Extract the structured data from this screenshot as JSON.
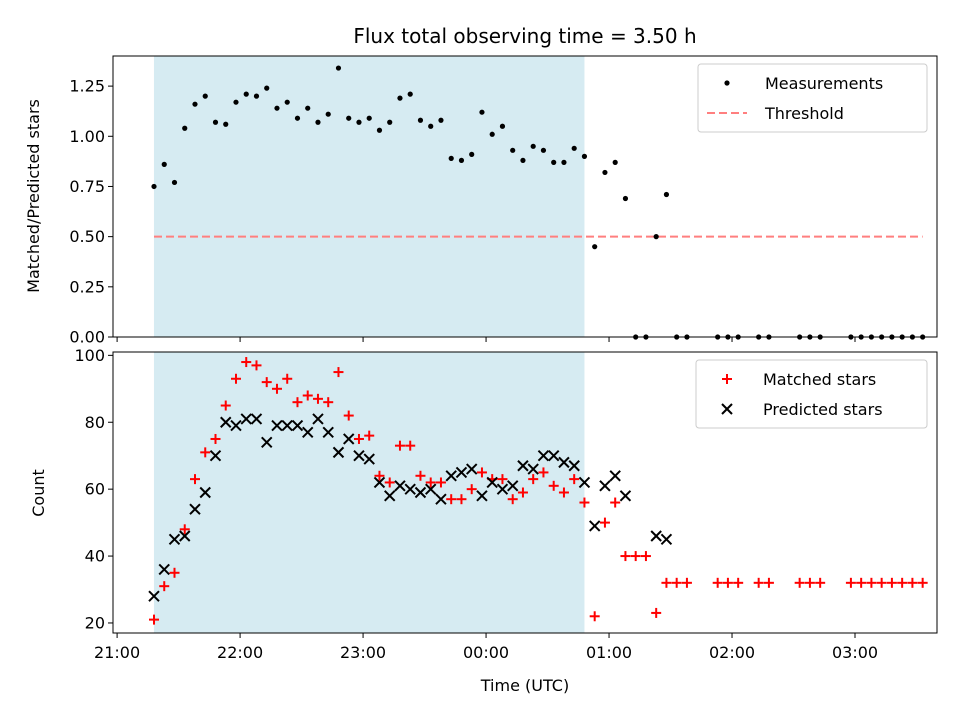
{
  "chart_data": [
    {
      "type": "scatter",
      "title": "Flux total observing time = 3.50 h",
      "xlabel": "",
      "ylabel": "Matched/Predicted stars",
      "xlim": [
        "2023-01-01T20:58",
        "2023-01-02T03:40"
      ],
      "ylim": [
        0,
        1.4
      ],
      "yticks": [
        0.0,
        0.25,
        0.5,
        0.75,
        1.0,
        1.25
      ],
      "ytick_labels": [
        "0.00",
        "0.25",
        "0.50",
        "0.75",
        "1.00",
        "1.25"
      ],
      "shaded_span": [
        "2023-01-01T21:18",
        "2023-01-02T00:48"
      ],
      "shaded_color": "#add8e6",
      "threshold": 0.5,
      "threshold_color": "#ff7f7f",
      "legend": {
        "position": "upper right",
        "entries": [
          "Measurements",
          "Threshold"
        ]
      },
      "series": [
        {
          "name": "Measurements",
          "marker": "dot",
          "color": "#000000",
          "points": [
            [
              "21:18",
              0.75
            ],
            [
              "21:23",
              0.86
            ],
            [
              "21:28",
              0.77
            ],
            [
              "21:33",
              1.04
            ],
            [
              "21:38",
              1.16
            ],
            [
              "21:43",
              1.2
            ],
            [
              "21:48",
              1.07
            ],
            [
              "21:53",
              1.06
            ],
            [
              "21:58",
              1.17
            ],
            [
              "22:03",
              1.21
            ],
            [
              "22:08",
              1.2
            ],
            [
              "22:13",
              1.24
            ],
            [
              "22:18",
              1.14
            ],
            [
              "22:23",
              1.17
            ],
            [
              "22:28",
              1.09
            ],
            [
              "22:33",
              1.14
            ],
            [
              "22:38",
              1.07
            ],
            [
              "22:43",
              1.11
            ],
            [
              "22:48",
              1.34
            ],
            [
              "22:53",
              1.09
            ],
            [
              "22:58",
              1.07
            ],
            [
              "23:03",
              1.09
            ],
            [
              "23:08",
              1.03
            ],
            [
              "23:13",
              1.07
            ],
            [
              "23:18",
              1.19
            ],
            [
              "23:23",
              1.21
            ],
            [
              "23:28",
              1.08
            ],
            [
              "23:33",
              1.05
            ],
            [
              "23:38",
              1.08
            ],
            [
              "23:43",
              0.89
            ],
            [
              "23:48",
              0.88
            ],
            [
              "23:53",
              0.91
            ],
            [
              "23:58",
              1.12
            ],
            [
              "00:03",
              1.01
            ],
            [
              "00:08",
              1.05
            ],
            [
              "00:13",
              0.93
            ],
            [
              "00:18",
              0.88
            ],
            [
              "00:23",
              0.95
            ],
            [
              "00:28",
              0.93
            ],
            [
              "00:33",
              0.87
            ],
            [
              "00:38",
              0.87
            ],
            [
              "00:43",
              0.94
            ],
            [
              "00:48",
              0.9
            ],
            [
              "00:53",
              0.45
            ],
            [
              "00:58",
              0.82
            ],
            [
              "01:03",
              0.87
            ],
            [
              "01:08",
              0.69
            ],
            [
              "01:13",
              0.0
            ],
            [
              "01:18",
              0.0
            ],
            [
              "01:23",
              0.5
            ],
            [
              "01:28",
              0.71
            ],
            [
              "01:33",
              0.0
            ],
            [
              "01:38",
              0.0
            ],
            [
              "01:53",
              0.0
            ],
            [
              "01:58",
              0.0
            ],
            [
              "02:03",
              0.0
            ],
            [
              "02:13",
              0.0
            ],
            [
              "02:18",
              0.0
            ],
            [
              "02:33",
              0.0
            ],
            [
              "02:38",
              0.0
            ],
            [
              "02:43",
              0.0
            ],
            [
              "02:58",
              0.0
            ],
            [
              "03:03",
              0.0
            ],
            [
              "03:08",
              0.0
            ],
            [
              "03:13",
              0.0
            ],
            [
              "03:18",
              0.0
            ],
            [
              "03:23",
              0.0
            ],
            [
              "03:28",
              0.0
            ],
            [
              "03:33",
              0.0
            ]
          ]
        },
        {
          "name": "Threshold",
          "marker": "dashed-line",
          "color": "#ff7f7f",
          "points": [
            [
              "21:18",
              0.5
            ],
            [
              "03:33",
              0.5
            ]
          ]
        }
      ]
    },
    {
      "type": "scatter",
      "title": "",
      "xlabel": "Time (UTC)",
      "ylabel": "Count",
      "xlim": [
        "2023-01-01T20:58",
        "2023-01-02T03:40"
      ],
      "ylim": [
        17,
        101
      ],
      "yticks": [
        20,
        40,
        60,
        80,
        100
      ],
      "ytick_labels": [
        "20",
        "40",
        "60",
        "80",
        "100"
      ],
      "xticks": [
        "21:00",
        "22:00",
        "23:00",
        "00:00",
        "01:00",
        "02:00",
        "03:00"
      ],
      "shaded_span": [
        "2023-01-01T21:18",
        "2023-01-02T00:48"
      ],
      "shaded_color": "#add8e6",
      "legend": {
        "position": "upper right",
        "entries": [
          "Matched stars",
          "Predicted stars"
        ]
      },
      "series": [
        {
          "name": "Matched stars",
          "marker": "plus",
          "color": "#ff0000",
          "points": [
            [
              "21:18",
              21
            ],
            [
              "21:23",
              31
            ],
            [
              "21:28",
              35
            ],
            [
              "21:33",
              48
            ],
            [
              "21:38",
              63
            ],
            [
              "21:43",
              71
            ],
            [
              "21:48",
              75
            ],
            [
              "21:53",
              85
            ],
            [
              "21:58",
              93
            ],
            [
              "22:03",
              98
            ],
            [
              "22:08",
              97
            ],
            [
              "22:13",
              92
            ],
            [
              "22:18",
              90
            ],
            [
              "22:23",
              93
            ],
            [
              "22:28",
              86
            ],
            [
              "22:33",
              88
            ],
            [
              "22:38",
              87
            ],
            [
              "22:43",
              86
            ],
            [
              "22:48",
              95
            ],
            [
              "22:53",
              82
            ],
            [
              "22:58",
              75
            ],
            [
              "23:03",
              76
            ],
            [
              "23:08",
              64
            ],
            [
              "23:13",
              62
            ],
            [
              "23:18",
              73
            ],
            [
              "23:23",
              73
            ],
            [
              "23:28",
              64
            ],
            [
              "23:33",
              62
            ],
            [
              "23:38",
              62
            ],
            [
              "23:43",
              57
            ],
            [
              "23:48",
              57
            ],
            [
              "23:53",
              60
            ],
            [
              "23:58",
              65
            ],
            [
              "00:03",
              63
            ],
            [
              "00:08",
              63
            ],
            [
              "00:13",
              57
            ],
            [
              "00:18",
              59
            ],
            [
              "00:23",
              63
            ],
            [
              "00:28",
              65
            ],
            [
              "00:33",
              61
            ],
            [
              "00:38",
              59
            ],
            [
              "00:43",
              63
            ],
            [
              "00:48",
              56
            ],
            [
              "00:53",
              22
            ],
            [
              "00:58",
              50
            ],
            [
              "01:03",
              56
            ],
            [
              "01:08",
              40
            ],
            [
              "01:13",
              40
            ],
            [
              "01:18",
              40
            ],
            [
              "01:23",
              23
            ],
            [
              "01:28",
              32
            ],
            [
              "01:33",
              32
            ],
            [
              "01:38",
              32
            ],
            [
              "01:53",
              32
            ],
            [
              "01:58",
              32
            ],
            [
              "02:03",
              32
            ],
            [
              "02:13",
              32
            ],
            [
              "02:18",
              32
            ],
            [
              "02:33",
              32
            ],
            [
              "02:38",
              32
            ],
            [
              "02:43",
              32
            ],
            [
              "02:58",
              32
            ],
            [
              "03:03",
              32
            ],
            [
              "03:08",
              32
            ],
            [
              "03:13",
              32
            ],
            [
              "03:18",
              32
            ],
            [
              "03:23",
              32
            ],
            [
              "03:28",
              32
            ],
            [
              "03:33",
              32
            ]
          ]
        },
        {
          "name": "Predicted stars",
          "marker": "x",
          "color": "#000000",
          "points": [
            [
              "21:18",
              28
            ],
            [
              "21:23",
              36
            ],
            [
              "21:28",
              45
            ],
            [
              "21:33",
              46
            ],
            [
              "21:38",
              54
            ],
            [
              "21:43",
              59
            ],
            [
              "21:48",
              70
            ],
            [
              "21:53",
              80
            ],
            [
              "21:58",
              79
            ],
            [
              "22:03",
              81
            ],
            [
              "22:08",
              81
            ],
            [
              "22:13",
              74
            ],
            [
              "22:18",
              79
            ],
            [
              "22:23",
              79
            ],
            [
              "22:28",
              79
            ],
            [
              "22:33",
              77
            ],
            [
              "22:38",
              81
            ],
            [
              "22:43",
              77
            ],
            [
              "22:48",
              71
            ],
            [
              "22:53",
              75
            ],
            [
              "22:58",
              70
            ],
            [
              "23:03",
              69
            ],
            [
              "23:08",
              62
            ],
            [
              "23:13",
              58
            ],
            [
              "23:18",
              61
            ],
            [
              "23:23",
              60
            ],
            [
              "23:28",
              59
            ],
            [
              "23:33",
              60
            ],
            [
              "23:38",
              57
            ],
            [
              "23:43",
              64
            ],
            [
              "23:48",
              65
            ],
            [
              "23:53",
              66
            ],
            [
              "23:58",
              58
            ],
            [
              "00:03",
              62
            ],
            [
              "00:08",
              60
            ],
            [
              "00:13",
              61
            ],
            [
              "00:18",
              67
            ],
            [
              "00:23",
              66
            ],
            [
              "00:28",
              70
            ],
            [
              "00:33",
              70
            ],
            [
              "00:38",
              68
            ],
            [
              "00:43",
              67
            ],
            [
              "00:48",
              62
            ],
            [
              "00:53",
              49
            ],
            [
              "00:58",
              61
            ],
            [
              "01:03",
              64
            ],
            [
              "01:08",
              58
            ],
            [
              "01:23",
              46
            ],
            [
              "01:28",
              45
            ]
          ]
        }
      ]
    }
  ]
}
